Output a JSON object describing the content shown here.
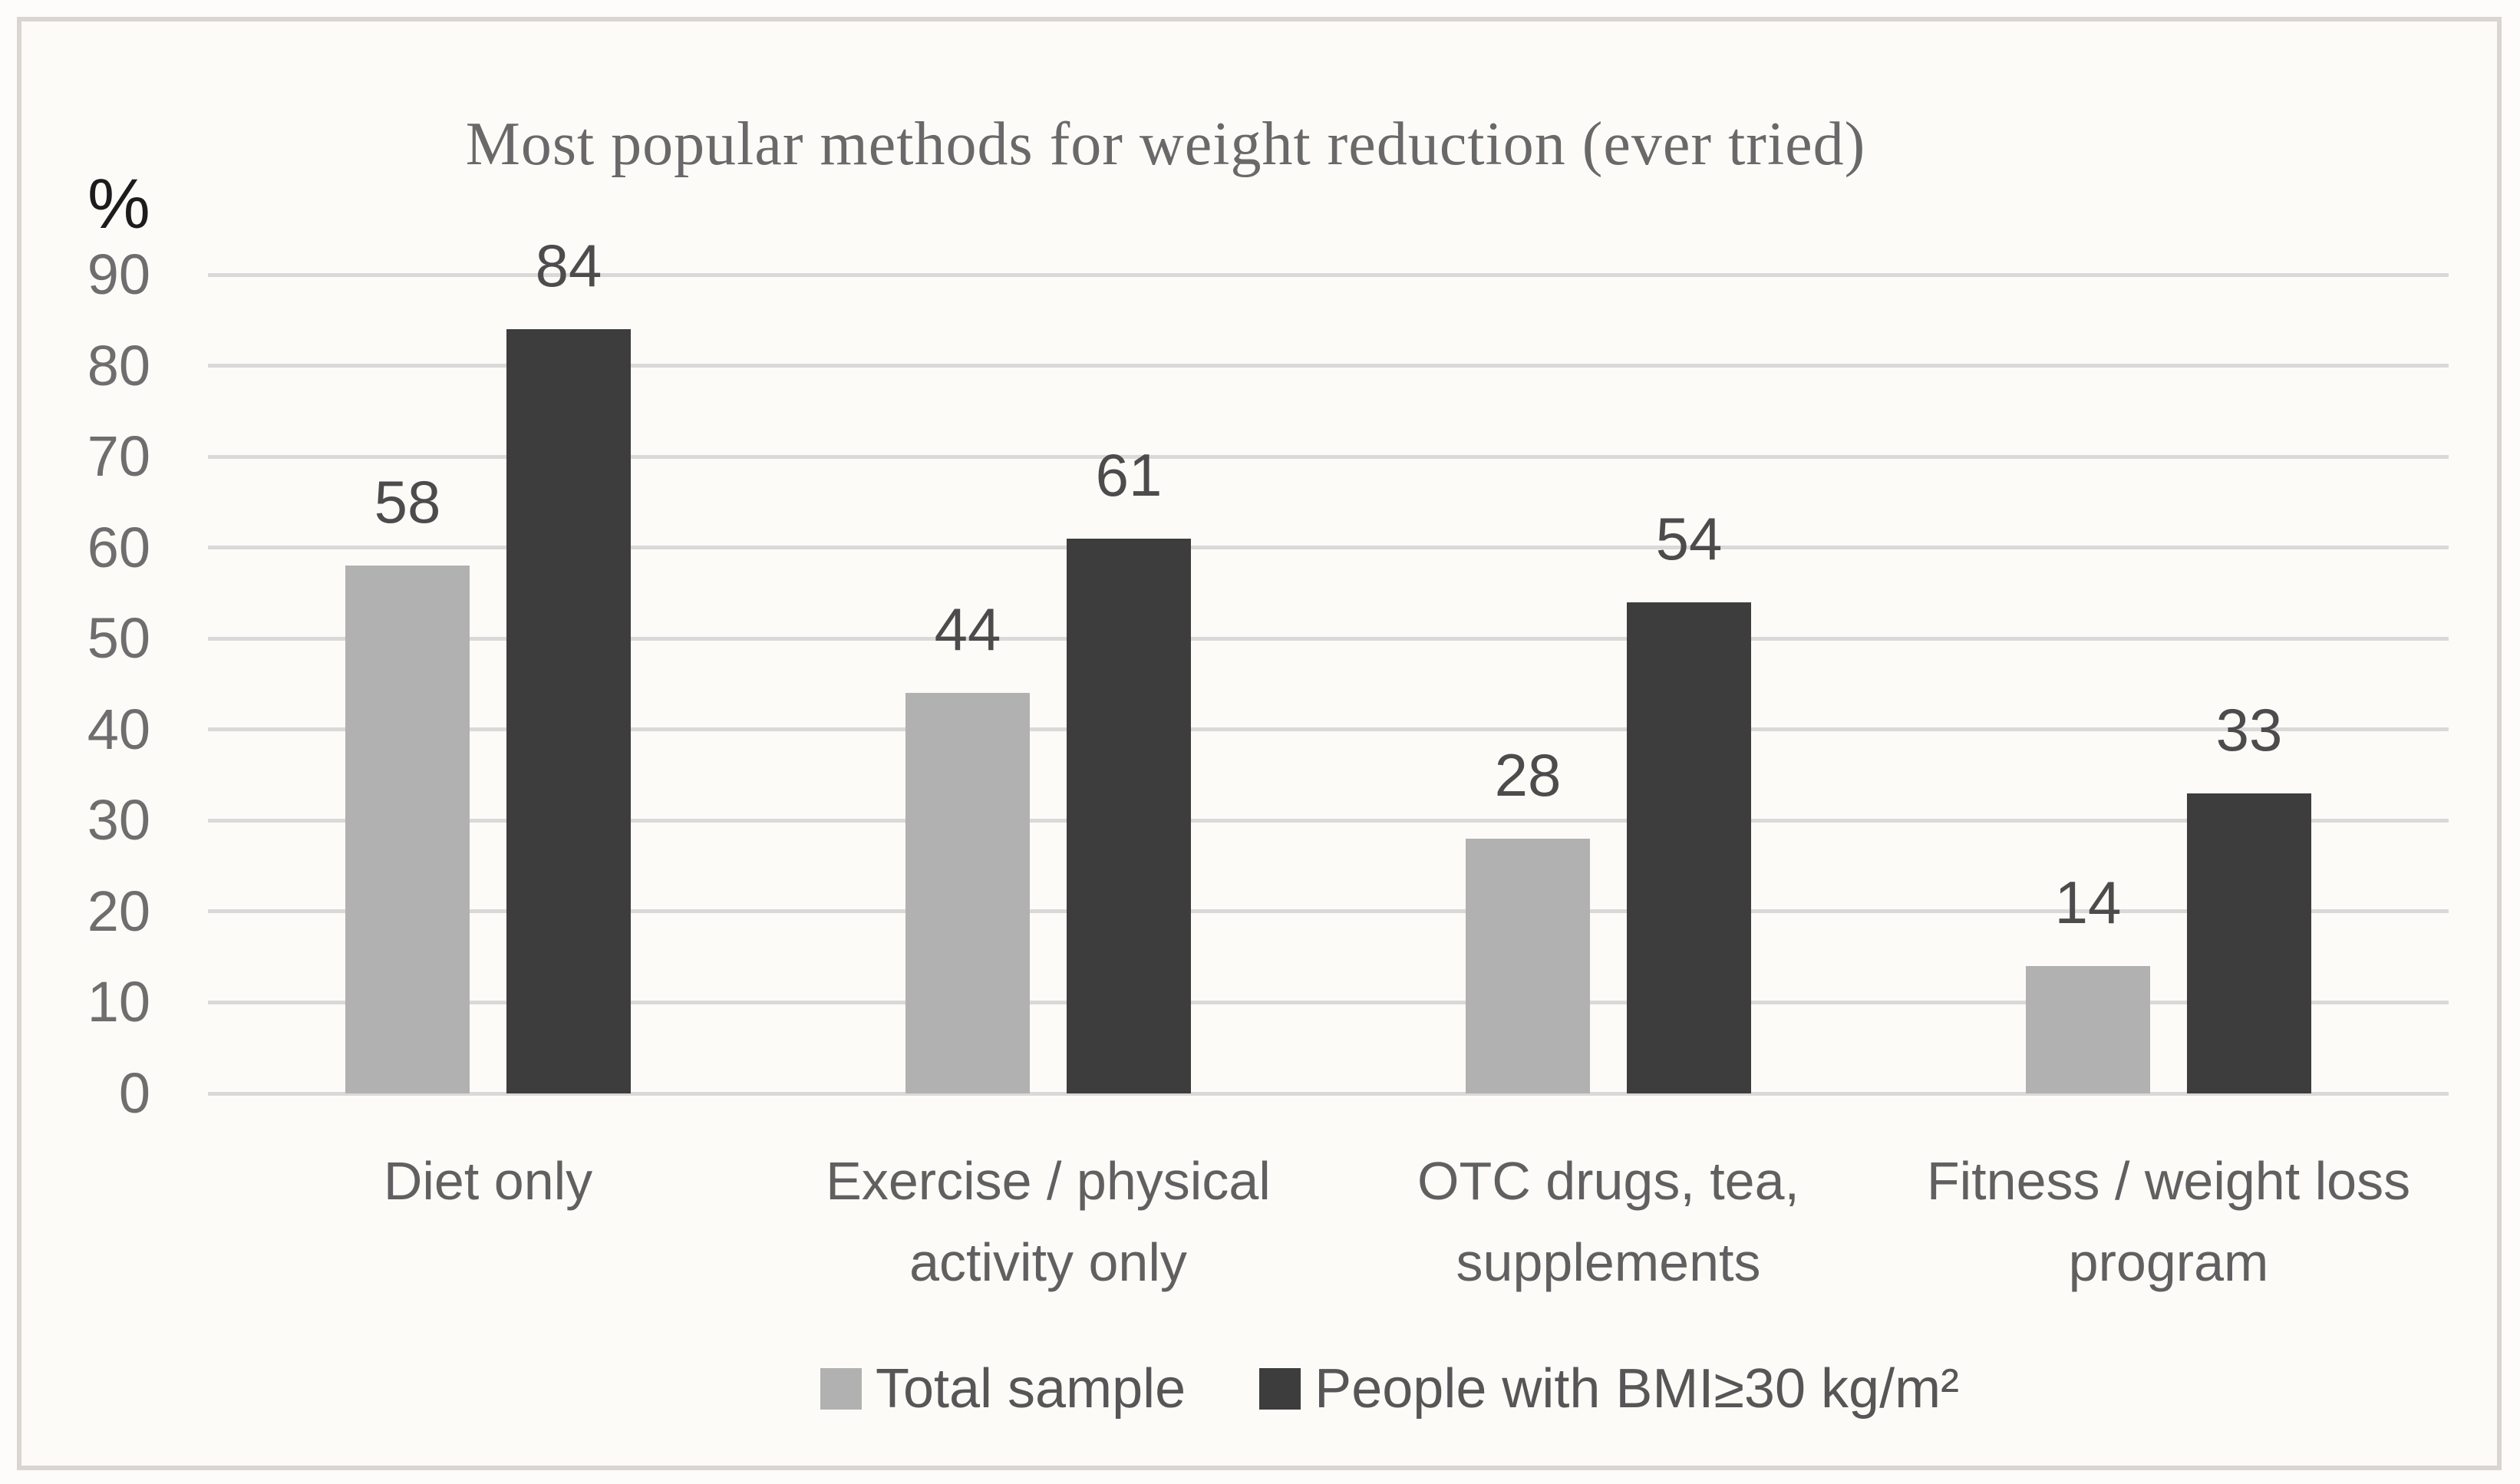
{
  "figure": {
    "background": "#fdfbf8",
    "frame_border_color": "#d9d5d0"
  },
  "chart_data": {
    "type": "bar",
    "title": "Most popular methods for weight reduction (ever tried)",
    "ylabel": "%",
    "xlabel": "",
    "categories": [
      "Diet only",
      "Exercise / physical activity only",
      "OTC drugs, tea, supplements",
      "Fitness / weight loss program"
    ],
    "series": [
      {
        "name": "Total sample",
        "color": "#b1b1b1",
        "values": [
          58,
          44,
          28,
          14
        ]
      },
      {
        "name": "People with BMI≥30 kg/m²",
        "color": "#3d3d3d",
        "values": [
          84,
          61,
          54,
          33
        ]
      }
    ],
    "y_axis": {
      "min": 0,
      "max": 90,
      "step": 10,
      "ticks": [
        0,
        10,
        20,
        30,
        40,
        50,
        60,
        70,
        80,
        90
      ]
    },
    "ylim": [
      0,
      90
    ],
    "grid": true,
    "gridline_color": "#d9d9d9",
    "legend_position": "bottom",
    "data_labels": true,
    "text_colors": {
      "title": "#696969",
      "tick_labels": "#6e6e6e",
      "category_labels": "#606060",
      "legend_labels": "#565656",
      "value_labels": "#4c4c4c",
      "unit_label": "#1c1c1c"
    }
  }
}
